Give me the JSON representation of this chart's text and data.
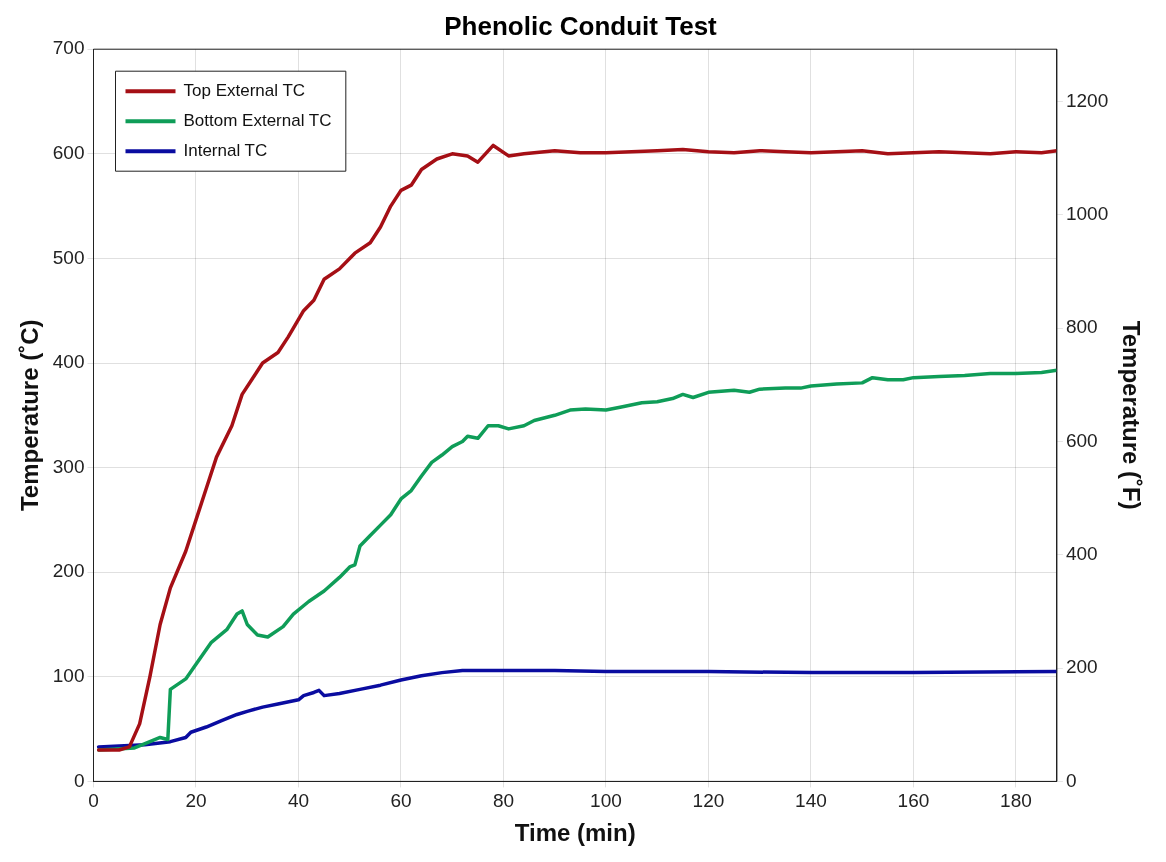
{
  "chart_data": {
    "type": "line",
    "title": "Phenolic Conduit Test",
    "xlabel": "Time (min)",
    "ylabel": "Temperature (˚C)",
    "y2label": "Temperature (˚F)",
    "xlim": [
      0,
      188
    ],
    "xticks": [
      0,
      20,
      40,
      60,
      80,
      100,
      120,
      140,
      160,
      180
    ],
    "ylim": [
      0,
      700
    ],
    "yticks": [
      0,
      100,
      200,
      300,
      400,
      500,
      600,
      700
    ],
    "y2lim": [
      0,
      1292
    ],
    "y2ticks": [
      0,
      200,
      400,
      600,
      800,
      1000,
      1200
    ],
    "grid": true,
    "legend": "top left",
    "marker": "none",
    "line_style": "solid",
    "series": [
      {
        "name": "Top External TC",
        "color": "#a50f15",
        "x": [
          1,
          5,
          7,
          9,
          11,
          13,
          15,
          18,
          20,
          22,
          24,
          27,
          29,
          31,
          33,
          36,
          38,
          41,
          43,
          45,
          48,
          51,
          54,
          56,
          58,
          60,
          62,
          64,
          67,
          70,
          73,
          75,
          78,
          81,
          84,
          90,
          95,
          100,
          105,
          110,
          115,
          120,
          125,
          130,
          135,
          140,
          145,
          150,
          155,
          160,
          165,
          170,
          175,
          180,
          185,
          188
        ],
        "values": [
          30,
          30,
          33,
          55,
          100,
          150,
          185,
          220,
          250,
          280,
          310,
          340,
          370,
          385,
          400,
          410,
          425,
          450,
          460,
          480,
          490,
          505,
          515,
          530,
          550,
          565,
          570,
          585,
          595,
          600,
          598,
          592,
          608,
          598,
          600,
          603,
          601,
          601,
          602,
          603,
          604,
          602,
          601,
          603,
          602,
          601,
          602,
          603,
          600,
          601,
          602,
          601,
          600,
          602,
          601,
          603
        ]
      },
      {
        "name": "Bottom External TC",
        "color": "#0f9d58",
        "x": [
          1,
          8,
          11,
          13,
          14.5,
          15,
          18,
          20,
          23,
          26,
          28,
          29,
          30,
          32,
          34,
          37,
          39,
          42,
          45,
          48,
          50,
          51,
          52,
          54,
          56,
          58,
          60,
          62,
          64,
          66,
          68,
          70,
          72,
          73,
          75,
          77,
          79,
          81,
          84,
          86,
          90,
          93,
          96,
          100,
          103,
          107,
          110,
          113,
          115,
          117,
          120,
          125,
          128,
          130,
          135,
          138,
          140,
          145,
          150,
          152,
          155,
          158,
          160,
          165,
          170,
          175,
          180,
          185,
          188
        ],
        "values": [
          30,
          32,
          38,
          42,
          40,
          88,
          98,
          112,
          133,
          145,
          160,
          163,
          150,
          140,
          138,
          148,
          160,
          172,
          182,
          195,
          205,
          207,
          225,
          235,
          245,
          255,
          270,
          278,
          292,
          305,
          312,
          320,
          325,
          330,
          328,
          340,
          340,
          337,
          340,
          345,
          350,
          355,
          356,
          355,
          358,
          362,
          363,
          366,
          370,
          367,
          372,
          374,
          372,
          375,
          376,
          376,
          378,
          380,
          381,
          386,
          384,
          384,
          386,
          387,
          388,
          390,
          390,
          391,
          393
        ]
      },
      {
        "name": "Internal TC",
        "color": "#0a0ca0",
        "x": [
          1,
          10,
          15,
          18,
          19,
          22,
          25,
          28,
          30,
          33,
          36,
          40,
          41,
          43,
          44,
          45,
          48,
          52,
          56,
          60,
          64,
          68,
          72,
          80,
          90,
          100,
          120,
          140,
          160,
          188
        ],
        "values": [
          33,
          35,
          38,
          42,
          47,
          52,
          58,
          64,
          67,
          71,
          74,
          78,
          82,
          85,
          87,
          82,
          84,
          88,
          92,
          97,
          101,
          104,
          106,
          106,
          106,
          105,
          105,
          104,
          104,
          105
        ]
      }
    ]
  }
}
